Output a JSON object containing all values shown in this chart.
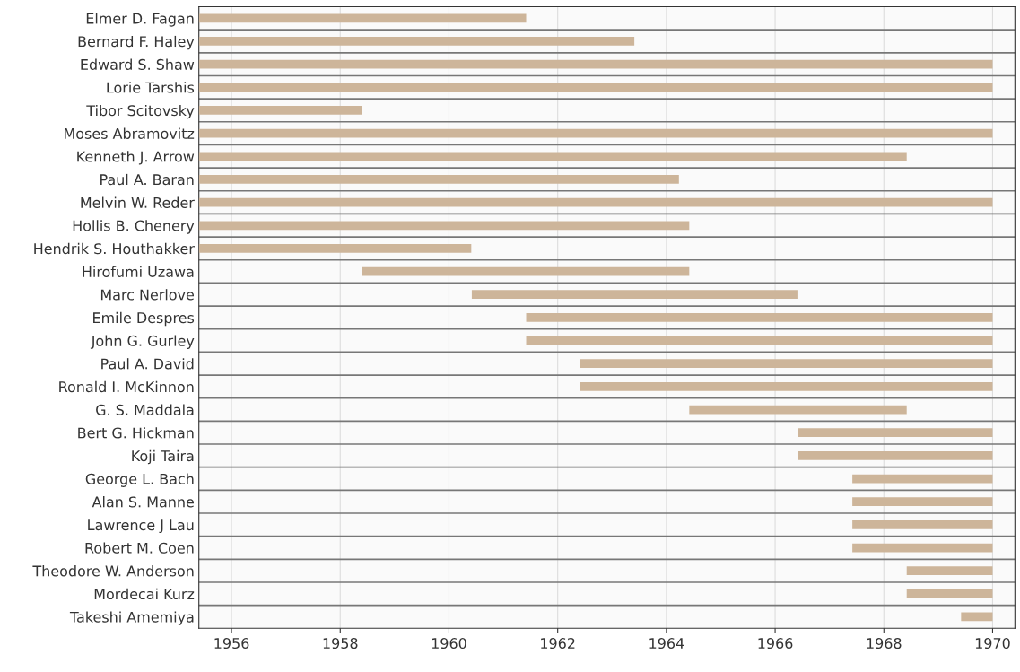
{
  "chart_data": {
    "type": "bar",
    "orientation": "horizontal",
    "categories": [
      "Elmer D. Fagan",
      "Bernard F. Haley",
      "Edward S. Shaw",
      "Lorie Tarshis",
      "Tibor Scitovsky",
      "Moses Abramovitz",
      "Kenneth J. Arrow",
      "Paul A. Baran",
      "Melvin W. Reder",
      "Hollis B. Chenery",
      "Hendrik S. Houthakker",
      "Hirofumi Uzawa",
      "Marc Nerlove",
      "Emile Despres",
      "John G. Gurley",
      "Paul A. David",
      "Ronald I. McKinnon",
      "G. S. Maddala",
      "Bert G. Hickman",
      "Koji Taira",
      "George L. Bach",
      "Alan S. Manne",
      "Lawrence J Lau",
      "Robert M. Coen",
      "Theodore W. Anderson",
      "Mordecai Kurz",
      "Takeshi Amemiya"
    ],
    "base": [
      1955.4,
      1955.4,
      1955.4,
      1955.4,
      1955.4,
      1955.4,
      1955.4,
      1955.4,
      1955.4,
      1955.4,
      1955.4,
      1958.4,
      1960.42,
      1961.42,
      1961.42,
      1962.41,
      1962.41,
      1964.42,
      1966.42,
      1966.42,
      1967.42,
      1967.42,
      1967.42,
      1967.42,
      1968.42,
      1968.42,
      1969.42
    ],
    "values": [
      6.02,
      8.01,
      14.6,
      14.6,
      3.0,
      14.6,
      13.02,
      8.83,
      14.6,
      9.02,
      5.01,
      6.02,
      5.99,
      8.58,
      8.58,
      7.59,
      7.59,
      4.0,
      3.58,
      3.58,
      2.58,
      2.58,
      2.58,
      2.58,
      1.58,
      1.58,
      0.58
    ],
    "color": "#cdb59a",
    "xlim": [
      1955.4,
      1970.41
    ],
    "xticks": [
      1956,
      1958,
      1960,
      1962,
      1964,
      1966,
      1968,
      1970
    ],
    "grid": "x"
  }
}
